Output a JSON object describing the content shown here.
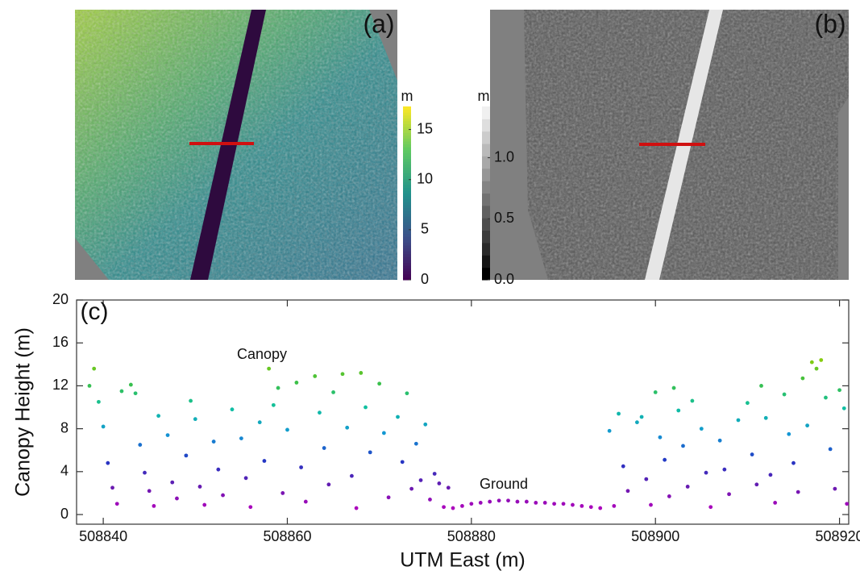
{
  "chart_data": [
    {
      "type": "colorbar",
      "panel_label": "(a)",
      "unit": "m",
      "ylim": [
        0,
        17.3
      ],
      "yticks": [
        0,
        5,
        10,
        15
      ],
      "colors": [
        "#440154",
        "#3b528b",
        "#21918c",
        "#5ec962",
        "#fde725"
      ],
      "discrete": false
    },
    {
      "type": "colorbar",
      "panel_label": "(b)",
      "unit": "m",
      "ylim": [
        0,
        1.42
      ],
      "yticks": [
        {
          "value": 0,
          "label": "0.0"
        },
        {
          "value": 0.5,
          "label": "0.5"
        },
        {
          "value": 1,
          "label": "1.0"
        }
      ],
      "colors": [
        "#000000",
        "#151515",
        "#2a2a2a",
        "#3c3c3c",
        "#4e4e4e",
        "#606060",
        "#727272",
        "#848484",
        "#969696",
        "#a8a8a8",
        "#bababa",
        "#cccccc",
        "#dedede",
        "#f0f0f0"
      ],
      "discrete": true
    },
    {
      "type": "scatter",
      "panel_label": "(c)",
      "xlabel": "UTM East (m)",
      "ylabel": "Canopy Height (m)",
      "annotations": [
        "Canopy",
        "Ground"
      ],
      "xlim": [
        508837.1,
        508921
      ],
      "xticks": [
        508840,
        508860,
        508880,
        508900,
        508920
      ],
      "ylim": [
        -0.9,
        20
      ],
      "yticks": [
        0,
        4,
        8,
        12,
        16,
        20
      ],
      "colormap": [
        "#c000c0",
        "#6a1ab0",
        "#2436c4",
        "#1496d4",
        "#10c0a0",
        "#40c040",
        "#9cd000"
      ],
      "clim": [
        0,
        15
      ],
      "x": [
        508838.5,
        508839,
        508839.5,
        508840,
        508840.5,
        508841,
        508841.5,
        508842,
        508843,
        508843.5,
        508844,
        508844.5,
        508845,
        508845.5,
        508846,
        508847,
        508847.5,
        508848,
        508849,
        508849.5,
        508850,
        508850.5,
        508851,
        508852,
        508852.5,
        508853,
        508854,
        508855,
        508855.5,
        508856,
        508857,
        508857.5,
        508858,
        508858.5,
        508859,
        508859.5,
        508860,
        508861,
        508861.5,
        508862,
        508863,
        508863.5,
        508864,
        508864.5,
        508865,
        508866,
        508866.5,
        508867,
        508867.5,
        508868,
        508868.5,
        508869,
        508870,
        508870.5,
        508871,
        508872,
        508872.5,
        508873,
        508873.5,
        508874,
        508874.5,
        508875,
        508875.5,
        508876,
        508876.5,
        508877,
        508877.5,
        508878,
        508879,
        508880,
        508881,
        508882,
        508883,
        508884,
        508885,
        508886,
        508887,
        508888,
        508889,
        508890,
        508891,
        508892,
        508893,
        508894,
        508895,
        508895.5,
        508896,
        508896.5,
        508897,
        508898,
        508898.5,
        508899,
        508899.5,
        508900,
        508900.5,
        508901,
        508901.5,
        508902,
        508902.5,
        508903,
        508903.5,
        508904,
        508905,
        508905.5,
        508906,
        508907,
        508907.5,
        508908,
        508909,
        508910,
        508910.5,
        508911,
        508911.5,
        508912,
        508912.5,
        508913,
        508914,
        508914.5,
        508915,
        508915.5,
        508916,
        508916.5,
        508917,
        508917.5,
        508918,
        508918.5,
        508919,
        508919.5,
        508920,
        508920.5,
        508920.8
      ],
      "y": [
        12.0,
        13.6,
        10.5,
        8.2,
        4.8,
        2.5,
        1.0,
        11.5,
        12.1,
        11.3,
        6.5,
        3.9,
        2.2,
        0.8,
        9.2,
        7.4,
        3.0,
        1.5,
        5.5,
        10.6,
        8.9,
        2.6,
        0.9,
        6.8,
        4.2,
        1.8,
        9.8,
        7.1,
        3.4,
        0.7,
        8.6,
        5.0,
        13.6,
        10.2,
        11.8,
        2.0,
        7.9,
        12.3,
        4.4,
        1.2,
        12.9,
        9.5,
        6.2,
        2.8,
        11.4,
        13.1,
        8.1,
        3.6,
        0.6,
        13.2,
        10.0,
        5.8,
        12.2,
        7.6,
        1.6,
        9.1,
        4.9,
        11.3,
        2.4,
        6.6,
        3.2,
        8.4,
        1.4,
        3.8,
        2.9,
        0.7,
        2.5,
        0.6,
        0.8,
        1.0,
        1.1,
        1.2,
        1.3,
        1.3,
        1.2,
        1.2,
        1.1,
        1.1,
        1.0,
        1.0,
        0.9,
        0.8,
        0.7,
        0.6,
        7.8,
        0.8,
        9.4,
        4.5,
        2.2,
        8.6,
        9.1,
        3.3,
        0.9,
        11.4,
        7.2,
        5.1,
        1.7,
        11.8,
        9.7,
        6.4,
        2.6,
        10.6,
        8.0,
        3.9,
        0.7,
        6.9,
        4.2,
        1.9,
        8.8,
        10.4,
        5.6,
        2.8,
        12.0,
        9.0,
        3.7,
        1.1,
        11.2,
        7.5,
        4.8,
        2.1,
        12.7,
        8.3,
        14.2,
        13.6,
        14.4,
        10.9,
        6.1,
        2.4,
        11.6,
        9.9,
        1.0
      ]
    }
  ]
}
